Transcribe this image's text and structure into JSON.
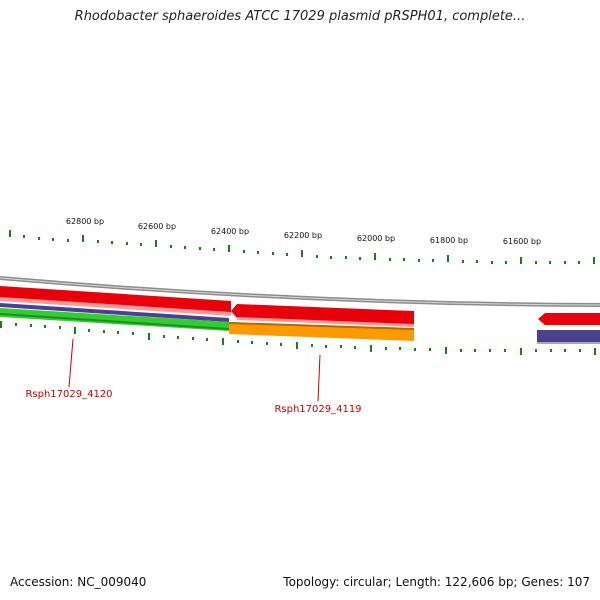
{
  "header": {
    "title": "Rhodobacter sphaeroides ATCC 17029 plasmid pRSPH01, complete..."
  },
  "footer": {
    "accession": "Accession: NC_009040",
    "summary": "Topology: circular; Length: 122,606 bp; Genes: 107"
  },
  "map": {
    "position_labels": [
      "62800 bp",
      "62600 bp",
      "62400 bp",
      "62200 bp",
      "62000 bp",
      "61800 bp",
      "61600 bp"
    ],
    "gene_labels": [
      "Rsph17029_4120",
      "Rsph17029_4119"
    ],
    "colors": {
      "backbone": "#8c8c8c",
      "cds_red": "#e8000a",
      "cds_orange": "#ff9900",
      "cds_purple": "#4b3f8f",
      "cds_green": "#33cc33",
      "tick": "#1a7f1a",
      "gene_label": "#cc0000"
    }
  }
}
